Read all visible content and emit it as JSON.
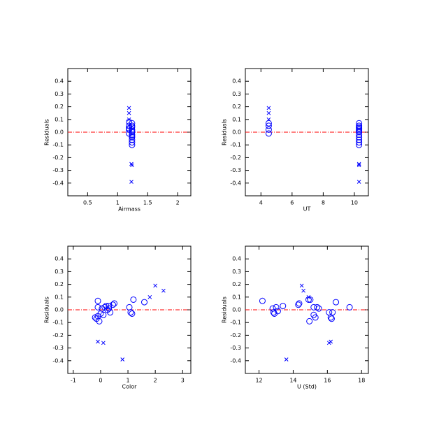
{
  "chart_data": [
    {
      "type": "scatter",
      "xlabel": "Airmass",
      "ylabel": "Residuals",
      "xlim": [
        0.17,
        2.22
      ],
      "xticks": [
        0.5,
        1,
        1.5,
        2
      ],
      "ylim": [
        -0.5,
        0.5
      ],
      "yticks": [
        -0.4,
        -0.3,
        -0.2,
        -0.1,
        {
          "value": 0,
          "label": "0.0"
        },
        0.1,
        0.2,
        0.3,
        0.4
      ],
      "hline": 0,
      "hline_color": "#ff0000",
      "series": [
        {
          "marker": "circle",
          "color": "#0000ff",
          "x": [
            1.19,
            1.19,
            1.19,
            1.19,
            1.19,
            1.24,
            1.24,
            1.24,
            1.24,
            1.24,
            1.24,
            1.24,
            1.24,
            1.24,
            1.24,
            1.24,
            1.24
          ],
          "values": [
            0.08,
            0.05,
            0.02,
            -0.01,
            0.03,
            0.07,
            0.04,
            0.02,
            0.0,
            -0.02,
            -0.04,
            -0.06,
            -0.08,
            -0.1,
            0.05,
            0.01,
            -0.03
          ]
        },
        {
          "marker": "x",
          "color": "#0000ff",
          "x": [
            1.19,
            1.19,
            1.19,
            1.23,
            1.24,
            1.23
          ],
          "values": [
            0.19,
            0.15,
            0.1,
            -0.25,
            -0.26,
            -0.39
          ]
        }
      ]
    },
    {
      "type": "scatter",
      "xlabel": "UT",
      "ylabel": "Residuals",
      "xlim": [
        3.0,
        10.9
      ],
      "xticks": [
        4,
        6,
        8,
        10
      ],
      "ylim": [
        -0.5,
        0.5
      ],
      "yticks": [
        -0.4,
        -0.3,
        -0.2,
        -0.1,
        {
          "value": 0,
          "label": "0.0"
        },
        0.1,
        0.2,
        0.3,
        0.4
      ],
      "hline": 0,
      "hline_color": "#ff0000",
      "series": [
        {
          "marker": "circle",
          "color": "#0000ff",
          "x": [
            4.5,
            4.5,
            4.5,
            4.5,
            10.3,
            10.3,
            10.3,
            10.3,
            10.3,
            10.3,
            10.3,
            10.3,
            10.3,
            10.3,
            10.3,
            10.3
          ],
          "values": [
            0.07,
            0.05,
            0.02,
            -0.01,
            0.07,
            0.05,
            0.03,
            0.02,
            0.0,
            -0.02,
            -0.04,
            -0.06,
            -0.08,
            -0.1,
            0.04,
            0.01
          ]
        },
        {
          "marker": "x",
          "color": "#0000ff",
          "x": [
            4.5,
            4.5,
            4.5,
            10.3,
            10.3,
            10.3
          ],
          "values": [
            0.19,
            0.15,
            0.1,
            -0.25,
            -0.26,
            -0.39
          ]
        }
      ]
    },
    {
      "type": "scatter",
      "xlabel": "Color",
      "ylabel": "Residuals",
      "xlim": [
        -1.2,
        3.3
      ],
      "xticks": [
        -1,
        0,
        1,
        2,
        3
      ],
      "ylim": [
        -0.5,
        0.5
      ],
      "yticks": [
        -0.4,
        -0.3,
        -0.2,
        -0.1,
        {
          "value": 0,
          "label": "0.0"
        },
        0.1,
        0.2,
        0.3,
        0.4
      ],
      "hline": 0,
      "hline_color": "#ff0000",
      "series": [
        {
          "marker": "circle",
          "color": "#0000ff",
          "x": [
            -0.2,
            -0.15,
            -0.1,
            -0.1,
            -0.1,
            -0.05,
            0,
            0.05,
            0.1,
            0.15,
            0.2,
            0.25,
            0.3,
            0.35,
            0.45,
            0.5,
            1.05,
            1.1,
            1.15,
            1.2,
            1.6,
            0.3
          ],
          "values": [
            -0.06,
            -0.07,
            -0.05,
            0.07,
            0.02,
            -0.09,
            -0.03,
            0.01,
            -0.04,
            0.02,
            0.03,
            0.0,
            0.03,
            -0.02,
            0.04,
            0.05,
            0.02,
            -0.02,
            -0.03,
            0.08,
            0.06,
            0.01
          ]
        },
        {
          "marker": "x",
          "color": "#0000ff",
          "x": [
            -0.1,
            0.1,
            0.8,
            1.8,
            2.0,
            2.3
          ],
          "values": [
            -0.25,
            -0.26,
            -0.39,
            0.1,
            0.19,
            0.15
          ]
        }
      ]
    },
    {
      "type": "scatter",
      "xlabel": "U (Std)",
      "ylabel": "Residuals",
      "xlim": [
        11.2,
        18.4
      ],
      "xticks": [
        12,
        14,
        16,
        18
      ],
      "ylim": [
        -0.5,
        0.5
      ],
      "yticks": [
        -0.4,
        -0.3,
        -0.2,
        -0.1,
        {
          "value": 0,
          "label": "0.0"
        },
        0.1,
        0.2,
        0.3,
        0.4
      ],
      "hline": 0,
      "hline_color": "#ff0000",
      "series": [
        {
          "marker": "circle",
          "color": "#0000ff",
          "x": [
            12.2,
            12.8,
            12.9,
            12.85,
            13.0,
            13.1,
            13.4,
            14.3,
            14.35,
            14.9,
            14.95,
            15.0,
            15.2,
            15.3,
            15.4,
            15.5,
            15.2,
            16.1,
            16.2,
            16.25,
            16.3,
            16.5,
            17.3
          ],
          "values": [
            0.07,
            0.01,
            -0.03,
            -0.02,
            0.02,
            -0.01,
            0.03,
            0.04,
            0.05,
            0.08,
            -0.09,
            0.08,
            0.02,
            -0.06,
            0.02,
            0.01,
            -0.04,
            -0.02,
            -0.06,
            -0.07,
            -0.02,
            0.06,
            0.02
          ]
        },
        {
          "marker": "x",
          "color": "#0000ff",
          "x": [
            14.5,
            14.6,
            13.6,
            16.1,
            16.2,
            14.9
          ],
          "values": [
            0.19,
            0.15,
            -0.39,
            -0.26,
            -0.25,
            0.1
          ]
        }
      ]
    }
  ]
}
